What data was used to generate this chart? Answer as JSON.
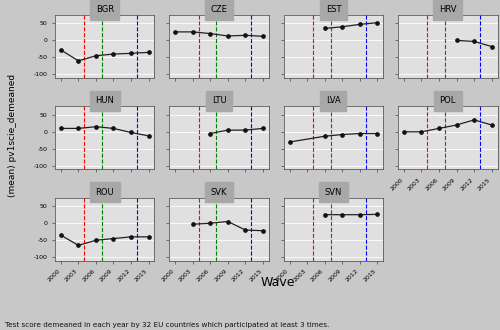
{
  "countries": [
    "BGR",
    "CZE",
    "EST",
    "HRV",
    "HUN",
    "LTU",
    "LVA",
    "POL",
    "ROU",
    "SVK",
    "SVN"
  ],
  "data": {
    "BGR": {
      "waves": [
        2000,
        2003,
        2006,
        2009,
        2012,
        2015
      ],
      "values": [
        -28,
        -60,
        -45,
        -40,
        -38,
        -35
      ]
    },
    "CZE": {
      "waves": [
        2000,
        2003,
        2006,
        2009,
        2012,
        2015
      ],
      "values": [
        25,
        25,
        20,
        13,
        15,
        12
      ]
    },
    "EST": {
      "waves": [
        2006,
        2009,
        2012,
        2015
      ],
      "values": [
        35,
        40,
        47,
        52
      ]
    },
    "HRV": {
      "waves": [
        2009,
        2012,
        2015
      ],
      "values": [
        0,
        -3,
        -18
      ]
    },
    "HUN": {
      "waves": [
        2000,
        2003,
        2006,
        2009,
        2012,
        2015
      ],
      "values": [
        10,
        10,
        15,
        10,
        -2,
        -12
      ]
    },
    "LTU": {
      "waves": [
        2006,
        2009,
        2012,
        2015
      ],
      "values": [
        -5,
        5,
        5,
        10
      ]
    },
    "LVA": {
      "waves": [
        2000,
        2006,
        2009,
        2012,
        2015
      ],
      "values": [
        -30,
        -13,
        -8,
        -5,
        -5
      ]
    },
    "POL": {
      "waves": [
        2000,
        2003,
        2006,
        2009,
        2012,
        2015
      ],
      "values": [
        0,
        0,
        10,
        20,
        35,
        20
      ]
    },
    "ROU": {
      "waves": [
        2000,
        2003,
        2006,
        2009,
        2012,
        2015
      ],
      "values": [
        -35,
        -65,
        -50,
        -45,
        -40,
        -40
      ]
    },
    "SVK": {
      "waves": [
        2003,
        2006,
        2009,
        2012,
        2015
      ],
      "values": [
        -3,
        0,
        5,
        -20,
        -22
      ]
    },
    "SVN": {
      "waves": [
        2006,
        2009,
        2012,
        2015
      ],
      "values": [
        25,
        25,
        25,
        26
      ]
    }
  },
  "vlines": {
    "red": 2004,
    "green": 2007,
    "blue": 2013
  },
  "ylim": [
    -110,
    75
  ],
  "yticks": [
    -100,
    -50,
    0,
    50
  ],
  "xticks": [
    2000,
    2003,
    2006,
    2009,
    2012,
    2015
  ],
  "ylabel": "(mean) pv1scie_demeaned",
  "xlabel": "Wave",
  "footnote": "Test score demeaned in each year by 32 EU countries which participated at least 3 times.",
  "bg_color": "#c8c8c8",
  "panel_bg": "#e0e0e0",
  "header_bg": "#a8a8a8",
  "grid_color": "#ffffff",
  "line_color": "#222222",
  "marker_color": "#111111",
  "zero_line_color": "#aaaaaa"
}
